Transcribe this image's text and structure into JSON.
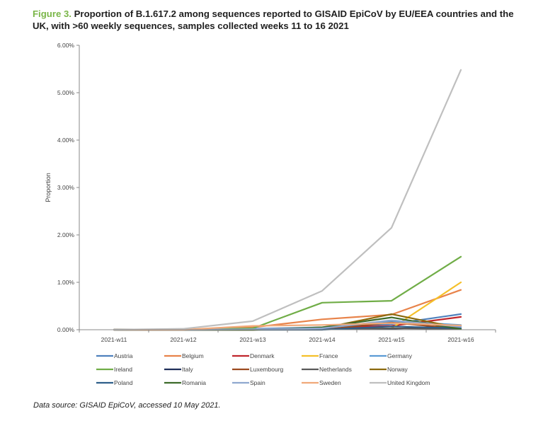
{
  "figure": {
    "label": "Figure 3.",
    "title": "Proportion of B.1.617.2 among sequences reported to GISAID EpiCoV by EU/EEA countries and the UK, with >60 weekly sequences, samples collected weeks 11 to 16 2021"
  },
  "source": "Data source: GISAID EpiCoV, accessed 10 May 2021.",
  "chart_data": {
    "type": "line",
    "title": "",
    "xlabel": "",
    "ylabel": "Proportion",
    "categories": [
      "2021-w11",
      "2021-w12",
      "2021-w13",
      "2021-w14",
      "2021-w15",
      "2021-w16"
    ],
    "ylim": [
      0,
      0.06
    ],
    "yticks": [
      0,
      0.01,
      0.02,
      0.03,
      0.04,
      0.05,
      0.06
    ],
    "ytick_labels": [
      "0.00%",
      "1.00%",
      "2.00%",
      "3.00%",
      "4.00%",
      "5.00%",
      "6.00%"
    ],
    "grid": false,
    "legend_position": "bottom",
    "series": [
      {
        "name": "Austria",
        "color": "#4f81bd",
        "values": [
          0,
          0,
          0.0002,
          0.0005,
          0.0012,
          0.0033
        ]
      },
      {
        "name": "Belgium",
        "color": "#e8834a",
        "values": [
          0,
          0,
          0.0005,
          0.0022,
          0.0032,
          0.0084
        ]
      },
      {
        "name": "Denmark",
        "color": "#c0262d",
        "values": [
          0,
          0,
          0,
          0.0004,
          0.0008,
          0.0027
        ]
      },
      {
        "name": "France",
        "color": "#f5c02a",
        "values": [
          0,
          0,
          0,
          0.0002,
          0.0003,
          0.01
        ]
      },
      {
        "name": "Germany",
        "color": "#5b9bd5",
        "values": [
          0,
          0,
          0.0001,
          0.0002,
          0.0018,
          0.001
        ]
      },
      {
        "name": "Ireland",
        "color": "#70ad47",
        "values": [
          0,
          0,
          0.0003,
          0.0057,
          0.0061,
          0.0154
        ]
      },
      {
        "name": "Italy",
        "color": "#1f2f5a",
        "values": [
          0,
          0,
          0,
          0.0002,
          0.0002,
          0.0008
        ]
      },
      {
        "name": "Luxembourg",
        "color": "#9c4a1f",
        "values": [
          0,
          0,
          0,
          0,
          0.0015,
          0.0002
        ]
      },
      {
        "name": "Netherlands",
        "color": "#595959",
        "values": [
          0,
          0,
          0,
          0.0001,
          0.0003,
          0.0002
        ]
      },
      {
        "name": "Norway",
        "color": "#8b6a0d",
        "values": [
          0,
          0,
          0,
          0.0003,
          0.0033,
          0.0003
        ]
      },
      {
        "name": "Poland",
        "color": "#2e5f8a",
        "values": [
          0,
          0,
          0,
          0,
          0.0007,
          0.0003
        ]
      },
      {
        "name": "Romania",
        "color": "#3d6b2a",
        "values": [
          0,
          0,
          0,
          0.0005,
          0.0026,
          0.0001
        ]
      },
      {
        "name": "Spain",
        "color": "#8fa8cf",
        "values": [
          0,
          0,
          0.0001,
          0.0003,
          0.002,
          0.0006
        ]
      },
      {
        "name": "Sweden",
        "color": "#f0a97a",
        "values": [
          0,
          0,
          0.0008,
          0.001,
          0.0014,
          0.0009
        ]
      },
      {
        "name": "United Kingdom",
        "color": "#bfbfbf",
        "values": [
          0,
          0.0002,
          0.0018,
          0.0082,
          0.0215,
          0.0548
        ]
      }
    ]
  }
}
